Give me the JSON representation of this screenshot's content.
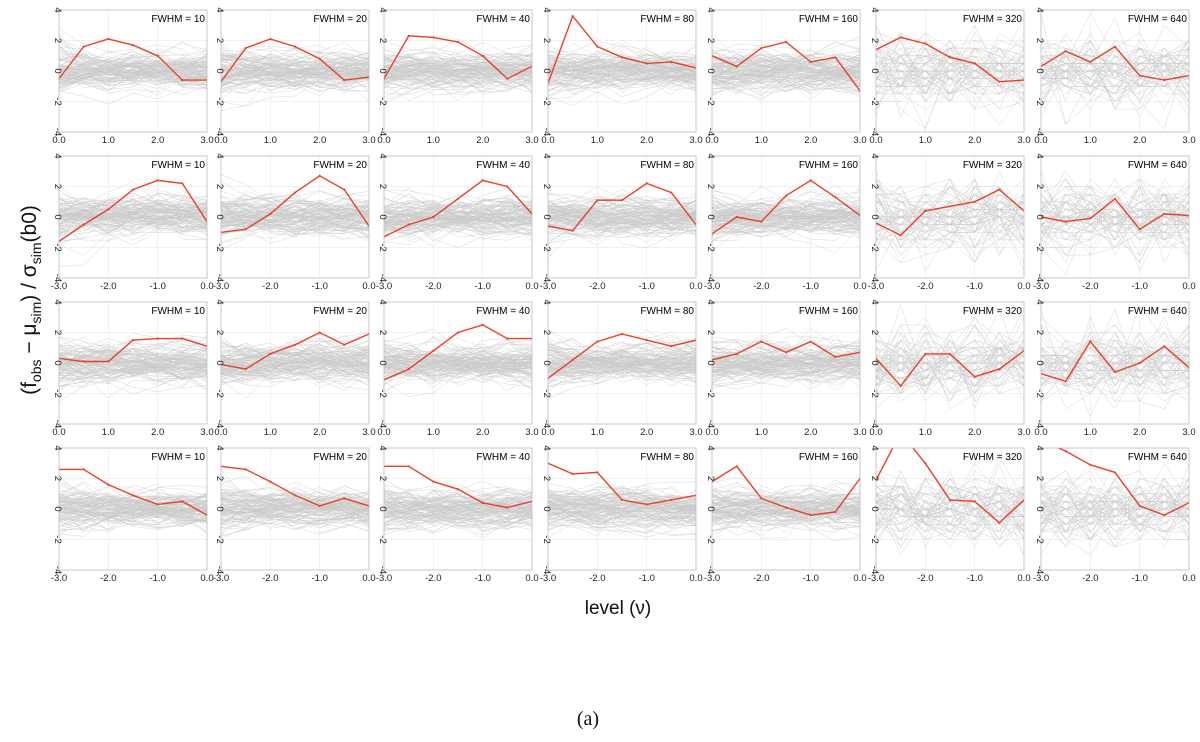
{
  "chart_data": {
    "type": "line",
    "layout": "small-multiples 4 rows x 7 columns",
    "xlabel": "level (ν)",
    "ylabel_parts": {
      "f": "(f",
      "obs": "obs",
      "minus": " − μ",
      "sim": "sim",
      "close": ") / σ",
      "sim2": "sim",
      "b0": "(b0)"
    },
    "caption": "(a)",
    "ylim": [
      -4,
      4
    ],
    "yticks": [
      "-4",
      "-2",
      "0",
      "2",
      "4"
    ],
    "grid": true,
    "background_series": "gray simulated curves",
    "highlight_color": "#e8412c",
    "background_color": "#c9c9c9",
    "column_titles": [
      "FWHM = 10",
      "FWHM = 20",
      "FWHM = 40",
      "FWHM = 80",
      "FWHM = 160",
      "FWHM = 320",
      "FWHM = 640"
    ],
    "rows": [
      {
        "x": [
          0,
          0.5,
          1,
          1.5,
          2,
          2.5,
          3
        ],
        "xticks": [
          "0.0",
          "1.0",
          "2.0",
          "3.0"
        ],
        "xlim": [
          0,
          3
        ],
        "series": [
          [
            -0.5,
            1.6,
            2.1,
            1.7,
            1.0,
            -0.6,
            -0.6
          ],
          [
            -0.7,
            1.5,
            2.1,
            1.6,
            0.8,
            -0.6,
            -0.4
          ],
          [
            -0.5,
            2.3,
            2.2,
            1.9,
            1.0,
            -0.5,
            0.3
          ],
          [
            -0.8,
            3.6,
            1.6,
            0.9,
            0.5,
            0.6,
            0.2
          ],
          [
            1.0,
            0.3,
            1.5,
            1.9,
            0.6,
            0.9,
            -1.3
          ],
          [
            1.4,
            2.2,
            1.8,
            0.9,
            0.5,
            -0.7,
            -0.6
          ],
          [
            0.3,
            1.3,
            0.6,
            1.6,
            -0.3,
            -0.6,
            -0.3
          ]
        ]
      },
      {
        "x": [
          -3,
          -2.5,
          -2,
          -1.5,
          -1,
          -0.5,
          0
        ],
        "xticks": [
          "-3.0",
          "-2.0",
          "-1.0",
          "0.0"
        ],
        "xlim": [
          -3,
          0
        ],
        "series": [
          [
            -1.6,
            -0.5,
            0.5,
            1.8,
            2.4,
            2.2,
            -0.3
          ],
          [
            -1.0,
            -0.8,
            0.2,
            1.6,
            2.7,
            1.8,
            -0.6
          ],
          [
            -1.3,
            -0.5,
            0.0,
            1.2,
            2.4,
            2.0,
            0.2
          ],
          [
            -0.6,
            -0.9,
            1.1,
            1.1,
            2.2,
            1.6,
            -0.5
          ],
          [
            -1.1,
            0.0,
            -0.3,
            1.4,
            2.4,
            1.3,
            0.1
          ],
          [
            -0.4,
            -1.2,
            0.4,
            0.7,
            1.0,
            1.8,
            0.4
          ],
          [
            0.0,
            -0.3,
            -0.1,
            1.2,
            -0.8,
            0.2,
            0.1
          ]
        ]
      },
      {
        "x": [
          0,
          0.5,
          1,
          1.5,
          2,
          2.5,
          3
        ],
        "xticks": [
          "0.0",
          "1.0",
          "2.0",
          "3.0"
        ],
        "xlim": [
          0,
          3
        ],
        "series": [
          [
            0.3,
            0.1,
            0.1,
            1.5,
            1.6,
            1.6,
            1.1
          ],
          [
            -0.1,
            -0.4,
            0.6,
            1.2,
            2.0,
            1.2,
            1.9
          ],
          [
            -1.1,
            -0.4,
            0.8,
            2.0,
            2.5,
            1.6,
            1.6
          ],
          [
            -1.0,
            0.2,
            1.4,
            1.9,
            1.5,
            1.1,
            1.5
          ],
          [
            0.2,
            0.6,
            1.4,
            0.7,
            1.4,
            0.4,
            0.7
          ],
          [
            0.3,
            -1.5,
            0.6,
            0.6,
            -0.9,
            -0.4,
            0.8
          ],
          [
            -0.7,
            -1.2,
            1.4,
            -0.6,
            0.0,
            1.1,
            -0.3
          ]
        ]
      },
      {
        "x": [
          -3,
          -2.5,
          -2,
          -1.5,
          -1,
          -0.5,
          0
        ],
        "xticks": [
          "-3.0",
          "-2.0",
          "-1.0",
          "0.0"
        ],
        "xlim": [
          -3,
          0
        ],
        "series": [
          [
            2.6,
            2.6,
            1.6,
            0.9,
            0.3,
            0.5,
            -0.4
          ],
          [
            2.8,
            2.6,
            1.8,
            0.9,
            0.2,
            0.7,
            0.2
          ],
          [
            2.8,
            2.8,
            1.8,
            1.3,
            0.4,
            0.1,
            0.5
          ],
          [
            3.0,
            2.3,
            2.4,
            0.6,
            0.3,
            0.6,
            0.9
          ],
          [
            1.8,
            2.8,
            0.7,
            0.1,
            -0.4,
            -0.2,
            2.0
          ],
          [
            1.9,
            5.0,
            3.0,
            0.6,
            0.5,
            -0.9,
            0.6
          ],
          [
            4.5,
            3.8,
            2.9,
            2.4,
            0.2,
            -0.4,
            0.4
          ]
        ]
      }
    ]
  }
}
